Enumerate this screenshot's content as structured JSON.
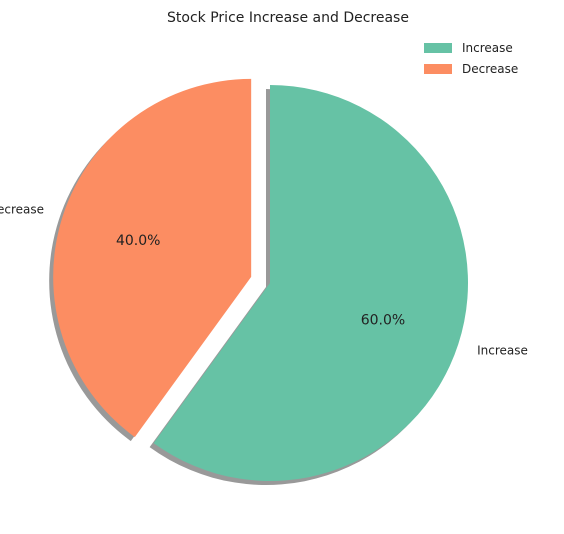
{
  "chart_data": {
    "type": "pie",
    "title": "Stock Price Increase and Decrease",
    "categories": [
      "Increase",
      "Decrease"
    ],
    "values": [
      60.0,
      40.0
    ],
    "percent_labels": [
      "60.0%",
      "40.0%"
    ],
    "colors": [
      "#66c2a5",
      "#fc8d62"
    ],
    "exploded": [
      false,
      true
    ],
    "shadow": true,
    "start_angle_deg": 90,
    "legend": {
      "placement": "top-right",
      "entries": [
        "Increase",
        "Decrease"
      ]
    }
  }
}
